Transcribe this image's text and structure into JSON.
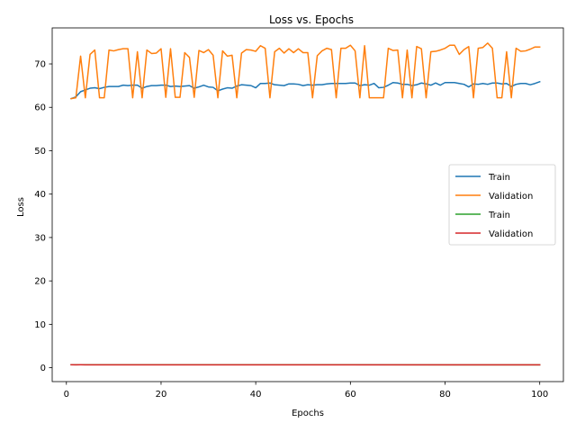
{
  "chart_data": {
    "type": "line",
    "title": "Loss vs. Epochs",
    "xlabel": "Epochs",
    "ylabel": "Loss",
    "xlim": [
      -3,
      105
    ],
    "ylim": [
      -3.2,
      78.3
    ],
    "xticks": [
      0,
      20,
      40,
      60,
      80,
      100
    ],
    "yticks": [
      0,
      10,
      20,
      30,
      40,
      50,
      60,
      70
    ],
    "grid": false,
    "legend_position": "center-right",
    "series": [
      {
        "name": "Train",
        "color": "#1f77b4",
        "x": [
          1,
          2,
          3,
          4,
          5,
          6,
          7,
          8,
          9,
          10,
          11,
          12,
          13,
          14,
          15,
          16,
          17,
          18,
          19,
          20,
          21,
          22,
          23,
          24,
          25,
          26,
          27,
          28,
          29,
          30,
          31,
          32,
          33,
          34,
          35,
          36,
          37,
          38,
          39,
          40,
          41,
          42,
          43,
          44,
          45,
          46,
          47,
          48,
          49,
          50,
          51,
          52,
          53,
          54,
          55,
          56,
          57,
          58,
          59,
          60,
          61,
          62,
          63,
          64,
          65,
          66,
          67,
          68,
          69,
          70,
          71,
          72,
          73,
          74,
          75,
          76,
          77,
          78,
          79,
          80,
          81,
          82,
          83,
          84,
          85,
          86,
          87,
          88,
          89,
          90,
          91,
          92,
          93,
          94,
          95,
          96,
          97,
          98,
          99,
          100
        ],
        "y": [
          62.0,
          62.4,
          63.6,
          64.0,
          64.4,
          64.5,
          64.3,
          64.6,
          64.8,
          64.8,
          64.8,
          65.1,
          65.0,
          65.1,
          65.1,
          64.4,
          64.8,
          65.0,
          65.0,
          65.1,
          65.1,
          64.8,
          64.9,
          64.8,
          64.9,
          65.0,
          64.4,
          64.7,
          65.1,
          64.7,
          64.6,
          63.8,
          64.2,
          64.5,
          64.4,
          64.9,
          65.2,
          65.1,
          65.0,
          64.5,
          65.5,
          65.5,
          65.6,
          65.2,
          65.1,
          65.0,
          65.4,
          65.4,
          65.3,
          65.0,
          65.2,
          65.1,
          65.2,
          65.2,
          65.4,
          65.5,
          65.5,
          65.5,
          65.5,
          65.6,
          65.6,
          65.0,
          65.2,
          65.1,
          65.5,
          64.5,
          64.6,
          65.1,
          65.7,
          65.6,
          65.3,
          65.3,
          65.0,
          65.2,
          65.6,
          65.4,
          65.1,
          65.6,
          65.1,
          65.7,
          65.7,
          65.7,
          65.5,
          65.3,
          64.7,
          65.4,
          65.3,
          65.5,
          65.3,
          65.6,
          65.6,
          65.4,
          65.5,
          64.8,
          65.3,
          65.5,
          65.5,
          65.2,
          65.5,
          65.9
        ]
      },
      {
        "name": "Validation",
        "color": "#ff7f0e",
        "x": [
          1,
          2,
          3,
          4,
          5,
          6,
          7,
          8,
          9,
          10,
          11,
          12,
          13,
          14,
          15,
          16,
          17,
          18,
          19,
          20,
          21,
          22,
          23,
          24,
          25,
          26,
          27,
          28,
          29,
          30,
          31,
          32,
          33,
          34,
          35,
          36,
          37,
          38,
          39,
          40,
          41,
          42,
          43,
          44,
          45,
          46,
          47,
          48,
          49,
          50,
          51,
          52,
          53,
          54,
          55,
          56,
          57,
          58,
          59,
          60,
          61,
          62,
          63,
          64,
          65,
          66,
          67,
          68,
          69,
          70,
          71,
          72,
          73,
          74,
          75,
          76,
          77,
          78,
          79,
          80,
          81,
          82,
          83,
          84,
          85,
          86,
          87,
          88,
          89,
          90,
          91,
          92,
          93,
          94,
          95,
          96,
          97,
          98,
          99,
          100
        ],
        "y": [
          62.0,
          62.2,
          71.8,
          62.2,
          72.2,
          73.2,
          62.2,
          62.2,
          73.2,
          73.0,
          73.3,
          73.5,
          73.5,
          62.2,
          72.8,
          62.2,
          73.2,
          72.4,
          72.5,
          73.5,
          62.3,
          73.5,
          62.3,
          62.3,
          72.6,
          71.5,
          62.3,
          73.1,
          72.6,
          73.3,
          72.0,
          62.2,
          73.0,
          71.8,
          72.0,
          62.2,
          72.5,
          73.3,
          73.2,
          72.9,
          74.2,
          73.6,
          62.2,
          72.8,
          73.6,
          72.5,
          73.5,
          72.6,
          73.5,
          72.6,
          72.6,
          62.2,
          71.9,
          73.0,
          73.6,
          73.3,
          62.2,
          73.6,
          73.6,
          74.3,
          73.0,
          62.2,
          74.2,
          62.2,
          62.2,
          62.2,
          62.2,
          73.6,
          73.1,
          73.2,
          62.2,
          73.2,
          62.2,
          74.0,
          73.5,
          62.2,
          72.8,
          72.9,
          73.2,
          73.6,
          74.3,
          74.3,
          72.2,
          73.3,
          74.0,
          62.2,
          73.6,
          73.8,
          74.8,
          73.6,
          62.2,
          62.2,
          72.8,
          62.2,
          73.6,
          72.9,
          73.0,
          73.4,
          73.9,
          73.9
        ]
      },
      {
        "name": "Train",
        "color": "#2ca02c",
        "x": [
          1,
          100
        ],
        "y": [
          0.69,
          0.67
        ]
      },
      {
        "name": "Validation",
        "color": "#d62728",
        "x": [
          1,
          2,
          3,
          4,
          5,
          6,
          7,
          8,
          9,
          10,
          11,
          12,
          13,
          14,
          15,
          16,
          17,
          18,
          19,
          20,
          21,
          22,
          23,
          24,
          25,
          26,
          27,
          28,
          29,
          30,
          31,
          32,
          33,
          34,
          35,
          36,
          37,
          38,
          39,
          40,
          41,
          42,
          43,
          44,
          45,
          46,
          47,
          48,
          49,
          50,
          51,
          52,
          53,
          54,
          55,
          56,
          57,
          58,
          59,
          60,
          61,
          62,
          63,
          64,
          65,
          66,
          67,
          68,
          69,
          70,
          71,
          72,
          73,
          74,
          75,
          76,
          77,
          78,
          79,
          80,
          81,
          82,
          83,
          84,
          85,
          86,
          87,
          88,
          89,
          90,
          91,
          92,
          93,
          94,
          95,
          96,
          97,
          98,
          99,
          100
        ],
        "y": [
          0.69,
          0.67,
          0.68,
          0.67,
          0.66,
          0.67,
          0.66,
          0.67,
          0.66,
          0.66,
          0.67,
          0.66,
          0.66,
          0.65,
          0.66,
          0.66,
          0.66,
          0.65,
          0.66,
          0.66,
          0.66,
          0.66,
          0.65,
          0.66,
          0.65,
          0.66,
          0.66,
          0.65,
          0.66,
          0.66,
          0.65,
          0.66,
          0.66,
          0.65,
          0.65,
          0.66,
          0.65,
          0.65,
          0.66,
          0.65,
          0.65,
          0.66,
          0.65,
          0.65,
          0.66,
          0.65,
          0.65,
          0.65,
          0.66,
          0.65,
          0.65,
          0.65,
          0.65,
          0.66,
          0.65,
          0.65,
          0.65,
          0.66,
          0.65,
          0.65,
          0.66,
          0.65,
          0.65,
          0.65,
          0.65,
          0.66,
          0.65,
          0.65,
          0.65,
          0.65,
          0.66,
          0.65,
          0.65,
          0.65,
          0.65,
          0.65,
          0.65,
          0.66,
          0.65,
          0.65,
          0.65,
          0.65,
          0.65,
          0.65,
          0.65,
          0.65,
          0.66,
          0.65,
          0.65,
          0.65,
          0.65,
          0.65,
          0.65,
          0.65,
          0.65,
          0.65,
          0.65,
          0.65,
          0.65,
          0.65
        ]
      }
    ]
  }
}
